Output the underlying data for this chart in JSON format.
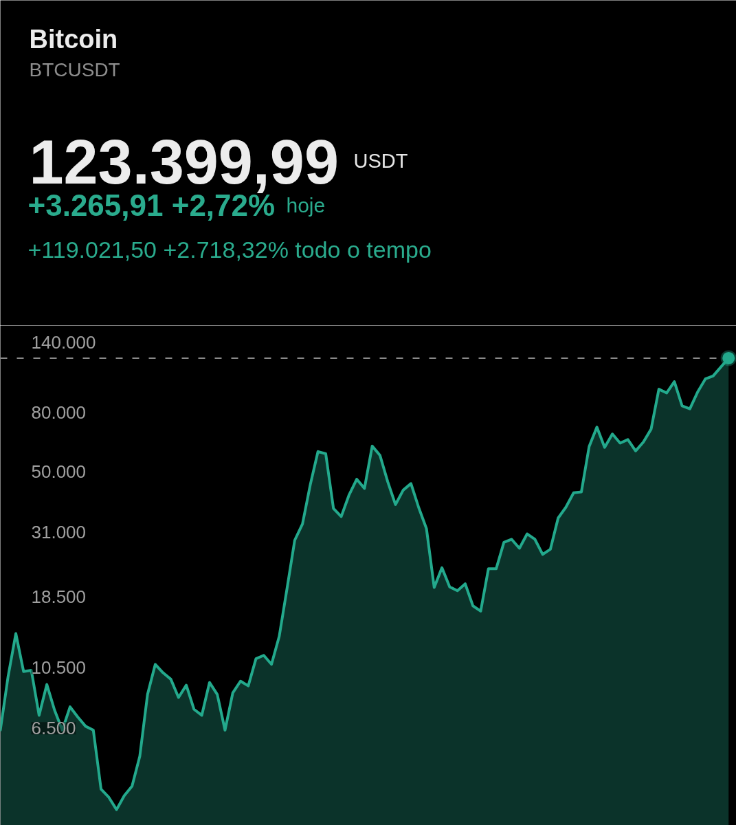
{
  "chart_data": {
    "type": "area",
    "title": "Bitcoin",
    "subtitle": "BTCUSDT",
    "annotations": [
      "123.399,99",
      "USDT",
      "+3.265,91 +2,72%",
      "hoje",
      "+119.021,50 +2.718,32% todo o tempo"
    ],
    "categories": [
      null,
      null,
      null,
      null,
      null,
      null,
      null,
      null,
      null,
      null,
      null,
      null,
      null,
      null,
      null,
      null,
      null,
      null,
      null,
      null,
      null,
      null,
      null,
      null,
      null,
      null,
      null,
      null,
      null,
      null,
      null,
      null,
      null,
      null,
      null,
      null,
      null,
      null,
      null,
      null,
      null,
      null,
      null,
      null,
      null,
      null,
      null,
      null,
      null,
      null,
      null,
      null,
      null,
      null,
      null,
      null,
      null,
      null,
      null,
      null,
      null,
      null,
      null,
      null,
      null,
      null,
      null,
      null,
      null,
      null,
      null,
      null,
      null,
      null,
      null,
      null,
      null,
      null,
      null,
      null,
      null,
      null,
      null,
      null,
      null,
      null,
      null,
      null,
      null,
      null,
      null,
      null,
      null,
      null,
      null
    ],
    "log": true,
    "ylim": [
      3000,
      160000
    ],
    "yticks": [
      {
        "value": 6500,
        "label": "6.500"
      },
      {
        "value": 10500,
        "label": "10.500"
      },
      {
        "value": 18500,
        "label": "18.500"
      },
      {
        "value": 31000,
        "label": "31.000"
      },
      {
        "value": 50000,
        "label": "50.000"
      },
      {
        "value": 80000,
        "label": "80.000"
      },
      {
        "value": 140000,
        "label": "140.000"
      }
    ],
    "series": [
      {
        "color": "#23a98c",
        "values": [
          6400,
          9800,
          13800,
          10200,
          10300,
          7200,
          9200,
          7500,
          6400,
          7700,
          7100,
          6600,
          6400,
          4000,
          3750,
          3400,
          3800,
          4100,
          5200,
          8500,
          10800,
          10100,
          9600,
          8300,
          9150,
          7550,
          7200,
          9350,
          8500,
          6400,
          8600,
          9450,
          9100,
          11300,
          11600,
          10800,
          13500,
          19700,
          29000,
          33000,
          45000,
          58700,
          57700,
          37300,
          35000,
          41500,
          47100,
          43800,
          61300,
          57000,
          46200,
          38500,
          43200,
          45500,
          37600,
          31800,
          19900,
          23300,
          20000,
          19400,
          20500,
          17200,
          16500,
          23100,
          23100,
          28500,
          29200,
          27200,
          30500,
          29200,
          25900,
          27000,
          34600,
          37700,
          42300,
          42600,
          61100,
          71300,
          60700,
          67500,
          62800,
          64600,
          59000,
          63300,
          70200,
          96400,
          93600,
          102400,
          84400,
          82500,
          94200,
          104600,
          107100,
          115000,
          123400
        ]
      },
      {
        "type": "scatter",
        "color": "#23a98c",
        "marker": "circle",
        "values": [
          null,
          null,
          null,
          null,
          null,
          null,
          null,
          null,
          null,
          null,
          null,
          null,
          null,
          null,
          null,
          null,
          null,
          null,
          null,
          null,
          null,
          null,
          null,
          null,
          null,
          null,
          null,
          null,
          null,
          null,
          null,
          null,
          null,
          null,
          null,
          null,
          null,
          null,
          null,
          null,
          null,
          null,
          null,
          null,
          null,
          null,
          null,
          null,
          null,
          null,
          null,
          null,
          null,
          null,
          null,
          null,
          null,
          null,
          null,
          null,
          null,
          null,
          null,
          null,
          null,
          null,
          null,
          null,
          null,
          null,
          null,
          null,
          null,
          null,
          null,
          null,
          null,
          null,
          null,
          null,
          null,
          null,
          null,
          null,
          null,
          null,
          null,
          null,
          null,
          null,
          null,
          null,
          null,
          null,
          123400
        ]
      }
    ],
    "ref_lines": [
      {
        "axis": "y",
        "value": 123400,
        "color": "#8a8a8a",
        "line_style": "dashed"
      }
    ]
  }
}
